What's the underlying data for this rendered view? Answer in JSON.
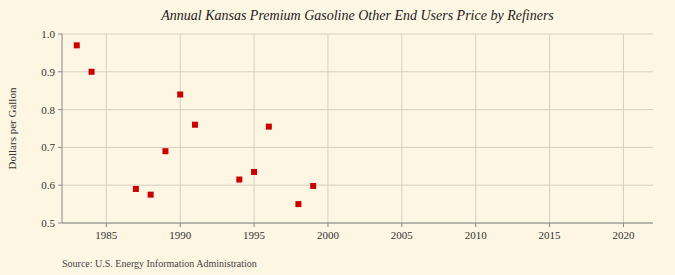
{
  "chart_data": {
    "type": "scatter",
    "title": "Annual Kansas Premium Gasoline Other End Users Price by Refiners",
    "ylabel": "Dollars per Gallon",
    "source": "Source: U.S. Energy Information Administration",
    "x": [
      1983,
      1984,
      1987,
      1988,
      1989,
      1990,
      1991,
      1994,
      1995,
      1996,
      1998,
      1999
    ],
    "values": [
      0.97,
      0.9,
      0.59,
      0.575,
      0.69,
      0.84,
      0.76,
      0.615,
      0.635,
      0.755,
      0.55,
      0.598
    ],
    "color": "#cc0000",
    "marker": "square",
    "xlim": [
      1982,
      2022
    ],
    "ylim": [
      0.5,
      1.0
    ],
    "xticks": [
      1985,
      1990,
      1995,
      2000,
      2005,
      2010,
      2015,
      2020
    ],
    "yticks": [
      0.5,
      0.6,
      0.7,
      0.8,
      0.9,
      {
        "value": 1.0,
        "label": "1.0"
      }
    ],
    "grid": true
  }
}
